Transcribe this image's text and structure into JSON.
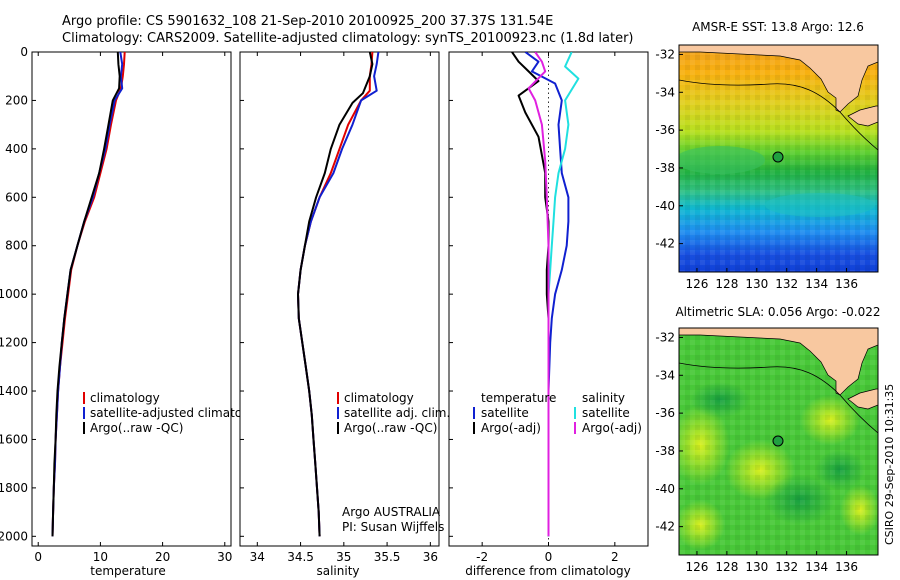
{
  "header": {
    "line1": "Argo profile: CS 5901632_108 21-Sep-2010 20100925_200 37.37S 131.54E",
    "line2": "Climatology: CARS2009. Satellite-adjusted climatology: synTS_20100923.nc (1.8d later)"
  },
  "colors": {
    "climatology": "#e00000",
    "satellite": "#1020d0",
    "argo": "#000000",
    "sal_satellite": "#20e0e0",
    "sal_argo": "#e020e0",
    "land": "#f8c8a0"
  },
  "chart_data": [
    {
      "type": "line",
      "panel": "temperature",
      "xlabel": "temperature",
      "xlim": [
        -1,
        31
      ],
      "ylim": [
        2040,
        0
      ],
      "xticks": [
        "0",
        "10",
        "20",
        "30"
      ],
      "yticks": [
        "0",
        "200",
        "400",
        "600",
        "800",
        "1000",
        "1200",
        "1400",
        "1600",
        "1800",
        "2000"
      ],
      "legend": [
        "climatology",
        "satellite-adjusted climatology",
        "Argo(..raw -QC)"
      ],
      "series": [
        {
          "name": "climatology",
          "color": "#e00000",
          "points": [
            [
              13.9,
              0
            ],
            [
              13.8,
              50
            ],
            [
              13.6,
              100
            ],
            [
              13.3,
              150
            ],
            [
              12.5,
              200
            ],
            [
              11.7,
              300
            ],
            [
              11,
              400
            ],
            [
              10,
              500
            ],
            [
              9,
              600
            ],
            [
              7.5,
              700
            ],
            [
              6.3,
              800
            ],
            [
              5.3,
              900
            ],
            [
              4.8,
              1000
            ],
            [
              4.3,
              1100
            ],
            [
              3.9,
              1200
            ],
            [
              3.5,
              1300
            ],
            [
              3.2,
              1400
            ],
            [
              3,
              1500
            ],
            [
              2.8,
              1600
            ],
            [
              2.7,
              1700
            ],
            [
              2.5,
              1800
            ],
            [
              2.4,
              1900
            ],
            [
              2.3,
              2000
            ]
          ]
        },
        {
          "name": "satellite-adjusted climatology",
          "color": "#1020d0",
          "points": [
            [
              13.2,
              0
            ],
            [
              13.5,
              50
            ],
            [
              13.3,
              100
            ],
            [
              13.5,
              150
            ],
            [
              12.3,
              200
            ],
            [
              11.5,
              300
            ],
            [
              10.8,
              400
            ],
            [
              9.8,
              500
            ],
            [
              8.8,
              600
            ],
            [
              7.4,
              700
            ],
            [
              6.3,
              800
            ],
            [
              5.2,
              900
            ],
            [
              4.7,
              1000
            ],
            [
              4.2,
              1100
            ],
            [
              3.8,
              1200
            ],
            [
              3.5,
              1300
            ],
            [
              3.2,
              1400
            ],
            [
              3,
              1500
            ],
            [
              2.8,
              1600
            ],
            [
              2.7,
              1700
            ],
            [
              2.5,
              1800
            ],
            [
              2.4,
              1900
            ],
            [
              2.3,
              2000
            ]
          ]
        },
        {
          "name": "Argo(..raw -QC)",
          "color": "#000000",
          "points": [
            [
              12.8,
              0
            ],
            [
              12.9,
              50
            ],
            [
              13.1,
              100
            ],
            [
              13,
              150
            ],
            [
              12,
              200
            ],
            [
              11.3,
              300
            ],
            [
              10.6,
              400
            ],
            [
              9.8,
              500
            ],
            [
              8.6,
              600
            ],
            [
              7.4,
              700
            ],
            [
              6.3,
              800
            ],
            [
              5.2,
              900
            ],
            [
              4.7,
              1000
            ],
            [
              4.2,
              1100
            ],
            [
              3.8,
              1200
            ],
            [
              3.4,
              1300
            ],
            [
              3.1,
              1400
            ],
            [
              2.9,
              1500
            ],
            [
              2.8,
              1600
            ],
            [
              2.6,
              1700
            ],
            [
              2.5,
              1800
            ],
            [
              2.4,
              1900
            ],
            [
              2.3,
              2000
            ]
          ]
        }
      ]
    },
    {
      "type": "line",
      "panel": "salinity",
      "xlabel": "salinity",
      "xlim": [
        33.8,
        36.1
      ],
      "ylim": [
        2040,
        0
      ],
      "xticks": [
        "34",
        "34.5",
        "35",
        "35.5",
        "36"
      ],
      "legend": [
        "climatology",
        "satellite adj. clim.",
        "Argo(..raw -QC)"
      ],
      "annotation": [
        "Argo AUSTRALIA",
        "PI: Susan Wijffels"
      ],
      "series": [
        {
          "name": "climatology",
          "color": "#e00000",
          "points": [
            [
              35.33,
              0
            ],
            [
              35.32,
              50
            ],
            [
              35.3,
              100
            ],
            [
              35.3,
              160
            ],
            [
              35.2,
              200
            ],
            [
              35.05,
              300
            ],
            [
              34.95,
              400
            ],
            [
              34.85,
              500
            ],
            [
              34.72,
              600
            ],
            [
              34.62,
              700
            ],
            [
              34.55,
              800
            ],
            [
              34.5,
              900
            ],
            [
              34.47,
              1000
            ],
            [
              34.48,
              1100
            ],
            [
              34.52,
              1200
            ],
            [
              34.56,
              1300
            ],
            [
              34.6,
              1400
            ],
            [
              34.63,
              1500
            ],
            [
              34.65,
              1600
            ],
            [
              34.67,
              1700
            ],
            [
              34.69,
              1800
            ],
            [
              34.71,
              1900
            ],
            [
              34.72,
              2000
            ]
          ]
        },
        {
          "name": "satellite adj. clim.",
          "color": "#1020d0",
          "points": [
            [
              35.4,
              0
            ],
            [
              35.38,
              50
            ],
            [
              35.35,
              100
            ],
            [
              35.38,
              160
            ],
            [
              35.2,
              200
            ],
            [
              35.1,
              300
            ],
            [
              34.98,
              400
            ],
            [
              34.88,
              500
            ],
            [
              34.72,
              600
            ],
            [
              34.62,
              700
            ],
            [
              34.55,
              800
            ],
            [
              34.5,
              900
            ],
            [
              34.47,
              1000
            ],
            [
              34.48,
              1100
            ],
            [
              34.52,
              1200
            ],
            [
              34.56,
              1300
            ],
            [
              34.6,
              1400
            ],
            [
              34.63,
              1500
            ],
            [
              34.65,
              1600
            ],
            [
              34.67,
              1700
            ],
            [
              34.69,
              1800
            ],
            [
              34.71,
              1900
            ],
            [
              34.72,
              2000
            ]
          ]
        },
        {
          "name": "Argo(..raw -QC)",
          "color": "#000000",
          "points": [
            [
              35.3,
              0
            ],
            [
              35.33,
              50
            ],
            [
              35.3,
              100
            ],
            [
              35.22,
              170
            ],
            [
              35.1,
              210
            ],
            [
              34.95,
              300
            ],
            [
              34.85,
              400
            ],
            [
              34.78,
              500
            ],
            [
              34.68,
              600
            ],
            [
              34.6,
              700
            ],
            [
              34.55,
              800
            ],
            [
              34.5,
              900
            ],
            [
              34.47,
              1000
            ],
            [
              34.48,
              1100
            ],
            [
              34.52,
              1200
            ],
            [
              34.56,
              1300
            ],
            [
              34.6,
              1400
            ],
            [
              34.63,
              1500
            ],
            [
              34.65,
              1600
            ],
            [
              34.67,
              1700
            ],
            [
              34.69,
              1800
            ],
            [
              34.71,
              1900
            ],
            [
              34.72,
              2000
            ]
          ]
        }
      ]
    },
    {
      "type": "line",
      "panel": "difference",
      "xlabel": "difference from climatology",
      "xlim": [
        -3,
        3
      ],
      "ylim": [
        2040,
        0
      ],
      "xticks": [
        "-2",
        "0",
        "2"
      ],
      "legend": {
        "temperature_title": "temperature",
        "salinity_title": "salinity",
        "temperature": [
          "satellite",
          "Argo(-adj)"
        ],
        "salinity": [
          "satellite",
          "Argo(-adj)"
        ]
      },
      "series": [
        {
          "name": "temperature satellite",
          "color": "#1020d0",
          "points": [
            [
              -0.7,
              0
            ],
            [
              -0.3,
              40
            ],
            [
              -0.5,
              80
            ],
            [
              0.2,
              130
            ],
            [
              0.4,
              200
            ],
            [
              0.3,
              300
            ],
            [
              0.35,
              400
            ],
            [
              0.4,
              500
            ],
            [
              0.6,
              600
            ],
            [
              0.6,
              700
            ],
            [
              0.55,
              800
            ],
            [
              0.4,
              900
            ],
            [
              0.2,
              1000
            ],
            [
              0.1,
              1100
            ],
            [
              0.05,
              1200
            ],
            [
              0,
              1400
            ],
            [
              0,
              1600
            ],
            [
              0,
              1800
            ],
            [
              0,
              2000
            ]
          ]
        },
        {
          "name": "temperature Argo(-adj)",
          "color": "#000000",
          "points": [
            [
              -1.1,
              0
            ],
            [
              -0.9,
              40
            ],
            [
              -0.6,
              80
            ],
            [
              -0.3,
              120
            ],
            [
              -0.9,
              180
            ],
            [
              -0.7,
              250
            ],
            [
              -0.3,
              350
            ],
            [
              -0.1,
              500
            ],
            [
              -0.1,
              600
            ],
            [
              0,
              700
            ],
            [
              0,
              800
            ],
            [
              -0.05,
              900
            ],
            [
              -0.05,
              1000
            ],
            [
              0,
              1100
            ],
            [
              0,
              1200
            ],
            [
              0,
              1400
            ],
            [
              0,
              1600
            ],
            [
              0,
              1800
            ],
            [
              0,
              2000
            ]
          ]
        },
        {
          "name": "salinity satellite",
          "color": "#20e0e0",
          "points": [
            [
              0.7,
              0
            ],
            [
              0.5,
              60
            ],
            [
              0.9,
              110
            ],
            [
              0.5,
              200
            ],
            [
              0.6,
              300
            ],
            [
              0.5,
              400
            ],
            [
              0.3,
              500
            ],
            [
              0.2,
              600
            ],
            [
              0.15,
              700
            ],
            [
              0.1,
              800
            ],
            [
              0.05,
              900
            ],
            [
              0,
              1000
            ],
            [
              0,
              1200
            ],
            [
              0,
              1400
            ],
            [
              0,
              1600
            ],
            [
              0,
              1800
            ],
            [
              0,
              2000
            ]
          ]
        },
        {
          "name": "salinity Argo(-adj)",
          "color": "#e020e0",
          "points": [
            [
              -0.4,
              0
            ],
            [
              -0.2,
              40
            ],
            [
              -0.1,
              80
            ],
            [
              -0.6,
              150
            ],
            [
              -0.4,
              200
            ],
            [
              -0.2,
              300
            ],
            [
              -0.1,
              450
            ],
            [
              -0.05,
              600
            ],
            [
              0,
              800
            ],
            [
              0,
              1000
            ],
            [
              0,
              1200
            ],
            [
              0,
              1400
            ],
            [
              0,
              1600
            ],
            [
              0,
              1800
            ],
            [
              0,
              2000
            ]
          ]
        }
      ]
    },
    {
      "type": "heatmap",
      "panel": "sst_map",
      "title": "AMSR-E SST: 13.8 Argo: 12.6",
      "xlim": [
        124.8,
        138.1
      ],
      "ylim": [
        -43.5,
        -31.5
      ],
      "xticks": [
        "126",
        "128",
        "130",
        "132",
        "134",
        "136"
      ],
      "yticks": [
        "-32",
        "-34",
        "-36",
        "-38",
        "-40",
        "-42"
      ],
      "float_position": [
        131.54,
        -37.37
      ]
    },
    {
      "type": "heatmap",
      "panel": "sla_map",
      "title": "Altimetric SLA: 0.056 Argo: -0.022",
      "xlim": [
        124.8,
        138.1
      ],
      "ylim": [
        -43.5,
        -31.5
      ],
      "xticks": [
        "126",
        "128",
        "130",
        "132",
        "134",
        "136"
      ],
      "yticks": [
        "-32",
        "-34",
        "-36",
        "-38",
        "-40",
        "-42"
      ],
      "float_position": [
        131.54,
        -37.37
      ]
    }
  ],
  "footer": {
    "credit": "CSIRO 29-Sep-2010 10:31:35"
  }
}
